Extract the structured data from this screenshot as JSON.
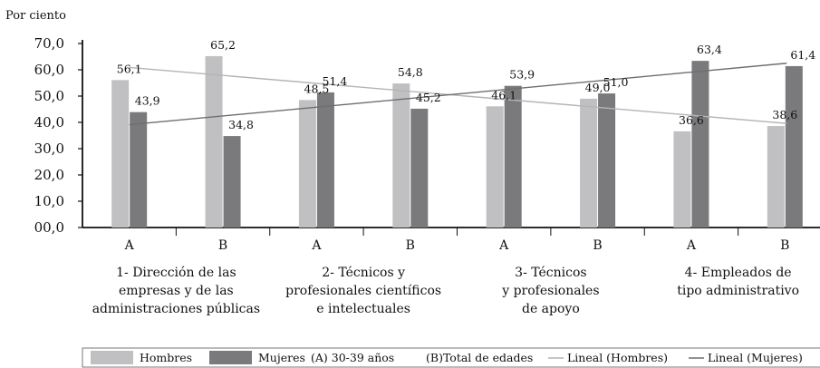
{
  "chart_data": {
    "type": "bar",
    "unit_label": "Por ciento",
    "title": "",
    "xlabel": "",
    "ylabel": "",
    "ylim": [
      0,
      70
    ],
    "yticks": [
      "00,0",
      "10,0",
      "20,0",
      "30,0",
      "40,0",
      "50,0",
      "60,0",
      "70,0"
    ],
    "categories": [
      "1A",
      "1B",
      "2A",
      "2B",
      "3A",
      "3B",
      "4A",
      "4B"
    ],
    "sub_labels": [
      "A",
      "B",
      "A",
      "B",
      "A",
      "B",
      "A",
      "B"
    ],
    "groups": [
      {
        "lines": [
          "1- Dirección de las",
          "empresas y de las",
          "administraciones públicas"
        ]
      },
      {
        "lines": [
          "2- Técnicos y",
          "profesionales científicos",
          "e intelectuales"
        ]
      },
      {
        "lines": [
          "3- Técnicos",
          "y profesionales",
          "de apoyo"
        ]
      },
      {
        "lines": [
          "4- Empleados de",
          "tipo administrativo"
        ]
      }
    ],
    "series": [
      {
        "name": "Hombres",
        "color": "#c0c0c2",
        "values": [
          56.1,
          65.2,
          48.5,
          54.8,
          46.1,
          49.0,
          36.6,
          38.6
        ],
        "labels": [
          "56,1",
          "65,2",
          "48,5",
          "54,8",
          "46,1",
          "49,0",
          "36,6",
          "38,6"
        ]
      },
      {
        "name": "Mujeres",
        "color": "#7a7a7c",
        "values": [
          43.9,
          34.8,
          51.4,
          45.2,
          53.9,
          51.0,
          63.4,
          61.4
        ],
        "labels": [
          "43,9",
          "34,8",
          "51,4",
          "45,2",
          "53,9",
          "51,0",
          "63,4",
          "61,4"
        ]
      }
    ],
    "trendlines": [
      {
        "name": "Lineal (Hombres)",
        "color": "#b4b4b6",
        "start": 60.9,
        "end": 39.6
      },
      {
        "name": "Lineal (Mujeres)",
        "color": "#6e6e70",
        "start": 39.1,
        "end": 62.5
      }
    ],
    "legend": {
      "position": "bottom",
      "items": [
        {
          "label": "Hombres",
          "kind": "box",
          "color": "#c0c0c2"
        },
        {
          "label": "Mujeres",
          "kind": "box",
          "color": "#7a7a7c"
        },
        {
          "label": "(A) 30-39 años",
          "kind": "text"
        },
        {
          "label": "(B)Total de edades",
          "kind": "text"
        },
        {
          "label": "Lineal (Hombres)",
          "kind": "line",
          "color": "#b4b4b6"
        },
        {
          "label": "Lineal (Mujeres)",
          "kind": "line",
          "color": "#6e6e70"
        }
      ]
    },
    "grid": false
  }
}
